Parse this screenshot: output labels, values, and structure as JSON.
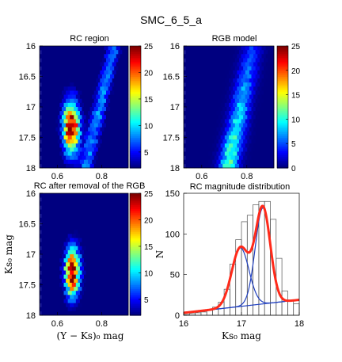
{
  "figure_title": "SMC_6_5_a",
  "colors": {
    "hist_bar_edge": "#555555",
    "model_curve": "#ff2a1a",
    "component_curve": "#1f3fbf",
    "panel_background": "#1c1c9a"
  },
  "colormap": "jet",
  "chart_data": [
    {
      "type": "heatmap",
      "title": "RC region",
      "xlabel": "",
      "ylabel": "",
      "xlim": [
        0.52,
        0.92
      ],
      "ylim": [
        16.0,
        18.0
      ],
      "y_reversed": true,
      "x_ticks": [
        "0.6",
        "0.8"
      ],
      "y_ticks": [
        "16",
        "16.5",
        "17",
        "17.5",
        "18"
      ],
      "colorbar_range": [
        2,
        25
      ],
      "colorbar_ticks": [
        "5",
        "10",
        "15",
        "20",
        "25"
      ],
      "hotspot": {
        "x_center": 0.655,
        "y_center": 17.35,
        "peak_count": 25
      },
      "rgb_sequence": {
        "x_at_top": 0.85,
        "x_at_bottom": 0.72
      }
    },
    {
      "type": "heatmap",
      "title": "RGB model",
      "xlabel": "",
      "ylabel": "",
      "xlim": [
        0.52,
        0.92
      ],
      "ylim": [
        16.0,
        18.0
      ],
      "y_reversed": true,
      "x_ticks": [
        "0.6",
        "0.8"
      ],
      "y_ticks": [
        "16",
        "16.5",
        "17",
        "17.5",
        "18"
      ],
      "colorbar_range": [
        0,
        25
      ],
      "colorbar_ticks": [
        "0",
        "5",
        "10",
        "15",
        "20",
        "25"
      ],
      "rgb_sequence": {
        "x_at_top": 0.82,
        "x_at_bottom": 0.71,
        "peak_count": 12
      }
    },
    {
      "type": "heatmap",
      "title": "RC after removal of the RGB",
      "xlabel": "(Y − Ks)₀ mag",
      "ylabel": "Ks₀ mag",
      "xlim": [
        0.52,
        0.92
      ],
      "ylim": [
        16.0,
        18.0
      ],
      "y_reversed": true,
      "x_ticks": [
        "0.6",
        "0.8"
      ],
      "y_ticks": [
        "16",
        "16.5",
        "17",
        "17.5",
        "18"
      ],
      "colorbar_range": [
        2,
        25
      ],
      "colorbar_ticks": [
        "5",
        "10",
        "15",
        "20",
        "25"
      ],
      "hotspot": {
        "x_center": 0.66,
        "y_center": 17.3,
        "peak_count": 25
      }
    },
    {
      "type": "bar",
      "title": "RC magnitude distribution",
      "xlabel": "Ks₀ mag",
      "ylabel": "N",
      "xlim": [
        16,
        18
      ],
      "ylim": [
        0,
        150
      ],
      "x_ticks": [
        "16",
        "17",
        "18"
      ],
      "y_ticks": [
        "0",
        "50",
        "100",
        "150"
      ],
      "bin_edges": [
        16.0,
        16.1,
        16.2,
        16.3,
        16.4,
        16.5,
        16.6,
        16.7,
        16.8,
        16.9,
        17.0,
        17.1,
        17.2,
        17.3,
        17.4,
        17.5,
        17.6,
        17.7,
        17.8,
        17.9,
        18.0
      ],
      "counts": [
        1,
        2,
        3,
        4,
        6,
        10,
        16,
        32,
        63,
        93,
        115,
        123,
        136,
        140,
        140,
        118,
        70,
        30,
        18,
        14
      ],
      "model": {
        "background_a0": 3,
        "background_a1": 8,
        "components": [
          {
            "amplitude": 72,
            "mean": 16.98,
            "sigma": 0.15
          },
          {
            "amplitude": 118,
            "mean": 17.37,
            "sigma": 0.13
          }
        ]
      }
    }
  ]
}
